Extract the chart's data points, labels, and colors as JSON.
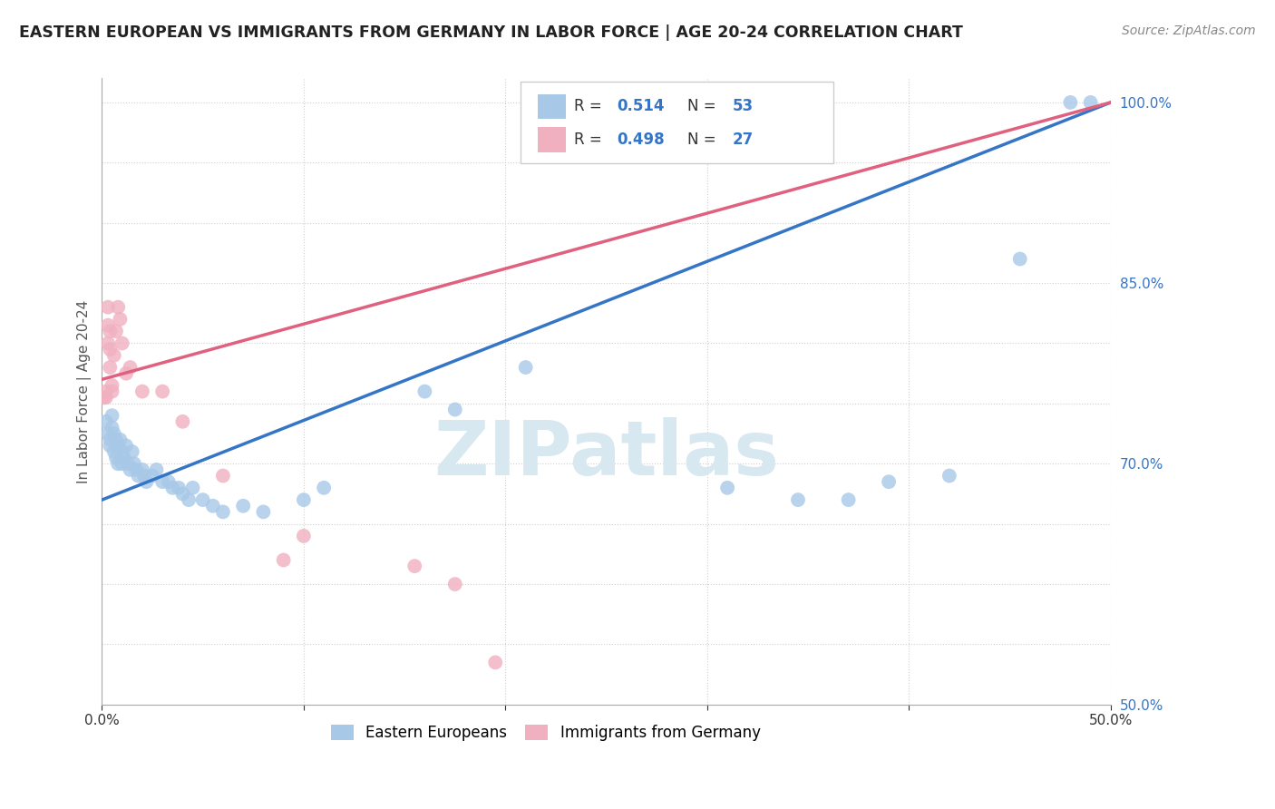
{
  "title": "EASTERN EUROPEAN VS IMMIGRANTS FROM GERMANY IN LABOR FORCE | AGE 20-24 CORRELATION CHART",
  "source": "Source: ZipAtlas.com",
  "ylabel": "In Labor Force | Age 20-24",
  "xlim": [
    0.0,
    0.5
  ],
  "ylim": [
    0.5,
    1.02
  ],
  "xtick_vals": [
    0.0,
    0.1,
    0.2,
    0.3,
    0.4,
    0.5
  ],
  "xtick_labels": [
    "0.0%",
    "",
    "",
    "",
    "",
    "50.0%"
  ],
  "ytick_vals": [
    0.5,
    0.55,
    0.6,
    0.65,
    0.7,
    0.75,
    0.8,
    0.85,
    0.9,
    0.95,
    1.0
  ],
  "ytick_labels": [
    "50.0%",
    "",
    "",
    "",
    "70.0%",
    "",
    "",
    "85.0%",
    "",
    "",
    "100.0%"
  ],
  "blue_R": 0.514,
  "blue_N": 53,
  "pink_R": 0.498,
  "pink_N": 27,
  "blue_scatter": [
    [
      0.002,
      0.735
    ],
    [
      0.003,
      0.725
    ],
    [
      0.004,
      0.72
    ],
    [
      0.004,
      0.715
    ],
    [
      0.005,
      0.74
    ],
    [
      0.005,
      0.73
    ],
    [
      0.006,
      0.725
    ],
    [
      0.006,
      0.71
    ],
    [
      0.007,
      0.72
    ],
    [
      0.007,
      0.705
    ],
    [
      0.008,
      0.715
    ],
    [
      0.008,
      0.7
    ],
    [
      0.009,
      0.72
    ],
    [
      0.01,
      0.71
    ],
    [
      0.01,
      0.7
    ],
    [
      0.011,
      0.705
    ],
    [
      0.012,
      0.715
    ],
    [
      0.013,
      0.7
    ],
    [
      0.014,
      0.695
    ],
    [
      0.015,
      0.71
    ],
    [
      0.016,
      0.7
    ],
    [
      0.017,
      0.695
    ],
    [
      0.018,
      0.69
    ],
    [
      0.02,
      0.695
    ],
    [
      0.021,
      0.69
    ],
    [
      0.022,
      0.685
    ],
    [
      0.025,
      0.69
    ],
    [
      0.027,
      0.695
    ],
    [
      0.03,
      0.685
    ],
    [
      0.033,
      0.685
    ],
    [
      0.035,
      0.68
    ],
    [
      0.038,
      0.68
    ],
    [
      0.04,
      0.675
    ],
    [
      0.043,
      0.67
    ],
    [
      0.045,
      0.68
    ],
    [
      0.05,
      0.67
    ],
    [
      0.055,
      0.665
    ],
    [
      0.06,
      0.66
    ],
    [
      0.07,
      0.665
    ],
    [
      0.08,
      0.66
    ],
    [
      0.1,
      0.67
    ],
    [
      0.11,
      0.68
    ],
    [
      0.16,
      0.76
    ],
    [
      0.175,
      0.745
    ],
    [
      0.21,
      0.78
    ],
    [
      0.31,
      0.68
    ],
    [
      0.345,
      0.67
    ],
    [
      0.37,
      0.67
    ],
    [
      0.39,
      0.685
    ],
    [
      0.42,
      0.69
    ],
    [
      0.455,
      0.87
    ],
    [
      0.48,
      1.0
    ],
    [
      0.49,
      1.0
    ]
  ],
  "pink_scatter": [
    [
      0.001,
      0.755
    ],
    [
      0.002,
      0.755
    ],
    [
      0.002,
      0.76
    ],
    [
      0.003,
      0.8
    ],
    [
      0.003,
      0.815
    ],
    [
      0.003,
      0.83
    ],
    [
      0.004,
      0.81
    ],
    [
      0.004,
      0.795
    ],
    [
      0.004,
      0.78
    ],
    [
      0.005,
      0.765
    ],
    [
      0.005,
      0.76
    ],
    [
      0.006,
      0.79
    ],
    [
      0.007,
      0.81
    ],
    [
      0.008,
      0.83
    ],
    [
      0.009,
      0.82
    ],
    [
      0.01,
      0.8
    ],
    [
      0.012,
      0.775
    ],
    [
      0.014,
      0.78
    ],
    [
      0.02,
      0.76
    ],
    [
      0.03,
      0.76
    ],
    [
      0.04,
      0.735
    ],
    [
      0.06,
      0.69
    ],
    [
      0.09,
      0.62
    ],
    [
      0.1,
      0.64
    ],
    [
      0.155,
      0.615
    ],
    [
      0.175,
      0.6
    ],
    [
      0.195,
      0.535
    ]
  ],
  "blue_color": "#a8c8e8",
  "pink_color": "#f0b0c0",
  "blue_line_color": "#3575c8",
  "pink_line_color": "#e06080",
  "watermark_text": "ZIPatlas",
  "watermark_color": "#d8e8f0",
  "grid_color": "#d0d0d0"
}
